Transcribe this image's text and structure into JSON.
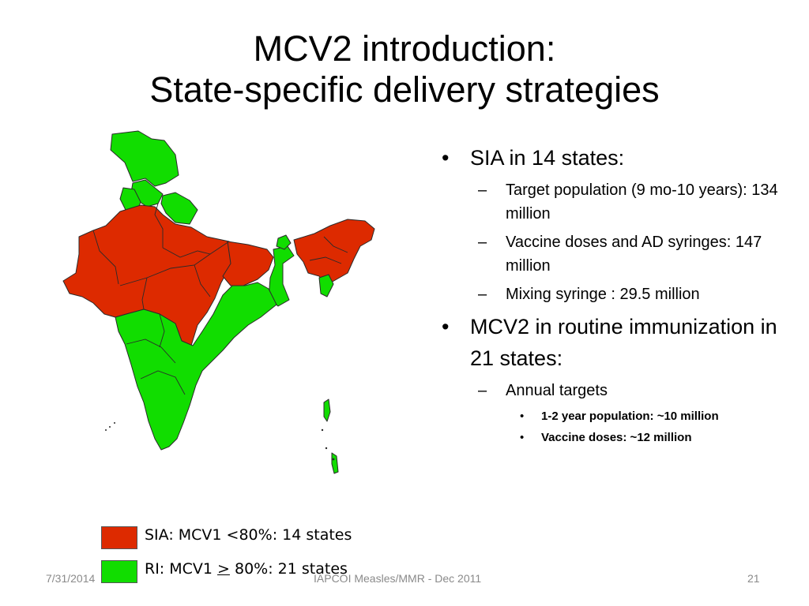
{
  "title": {
    "line1": "MCV2 introduction:",
    "line2": "State-specific delivery strategies"
  },
  "colors": {
    "sia": "#dd2a00",
    "ri": "#11dd00",
    "border": "#2a2a2a"
  },
  "bullets": [
    {
      "text": "SIA in 14 states:",
      "items": [
        {
          "text": "Target population (9 mo-10 years): 134 million"
        },
        {
          "text": "Vaccine doses and AD syringes: 147 million"
        },
        {
          "text": "Mixing syringe : 29.5 million"
        }
      ]
    },
    {
      "text": "MCV2 in routine immunization in 21 states:",
      "items": [
        {
          "text": "Annual targets",
          "items": [
            {
              "text": "1-2 year population: ~10 million"
            },
            {
              "text": "Vaccine doses: ~12 million"
            }
          ]
        }
      ]
    }
  ],
  "legend": {
    "sia_label": "SIA: MCV1 <80%: 14 states",
    "ri_prefix": "RI: MCV1 ",
    "ri_symbol": ">",
    "ri_suffix": " 80%: 21 states"
  },
  "footer": {
    "date": "7/31/2014",
    "center": "IAPCOI Measles/MMR - Dec 2011",
    "page": "21"
  }
}
